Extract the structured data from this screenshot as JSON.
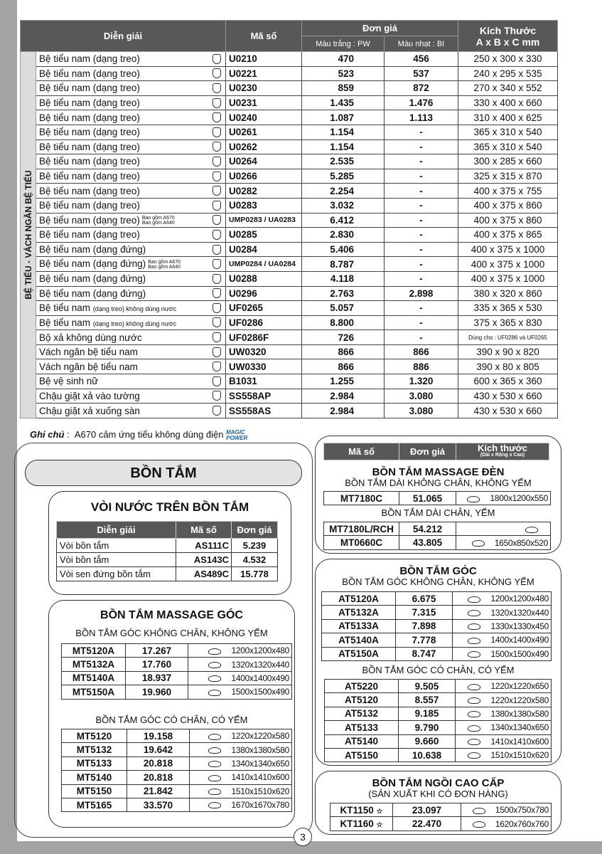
{
  "main_table": {
    "headers": {
      "desc": "Diễn giải",
      "code": "Mã số",
      "price": "Đơn giá",
      "pw": "Màu trắng : PW",
      "bi": "Màu nhạt : BI",
      "size": "Kích Thước",
      "size_unit": "A x B x C mm"
    },
    "side_label": "BỆ TIỂU - VÁCH NGĂN BỆ TIỂU",
    "rows": [
      {
        "desc": "Bệ tiểu nam (dạng treo)",
        "code": "U0210",
        "pw": "470",
        "bi": "456",
        "size": "250 x 300 x 330"
      },
      {
        "desc": "Bệ tiểu nam (dạng treo)",
        "code": "U0221",
        "pw": "523",
        "bi": "537",
        "size": "240 x 295 x 535"
      },
      {
        "desc": "Bệ tiểu nam (dạng treo)",
        "code": "U0230",
        "pw": "859",
        "bi": "872",
        "size": "270 x 340 x 552"
      },
      {
        "desc": "Bệ tiểu nam (dạng treo)",
        "code": "U0231",
        "pw": "1.435",
        "bi": "1.476",
        "size": "330 x 400 x 660"
      },
      {
        "desc": "Bệ tiểu nam (dạng treo)",
        "code": "U0240",
        "pw": "1.087",
        "bi": "1.113",
        "size": "310 x 400 x 625"
      },
      {
        "desc": "Bệ tiểu nam (dạng treo)",
        "code": "U0261",
        "pw": "1.154",
        "bi": "-",
        "size": "365 x 310 x 540"
      },
      {
        "desc": "Bệ tiểu nam (dạng treo)",
        "code": "U0262",
        "pw": "1.154",
        "bi": "-",
        "size": "365 x 310 x 540"
      },
      {
        "desc": "Bệ tiểu nam (dạng treo)",
        "code": "U0264",
        "pw": "2.535",
        "bi": "-",
        "size": "300 x 285 x 660"
      },
      {
        "desc": "Bệ tiểu nam (dạng treo)",
        "code": "U0266",
        "pw": "5.285",
        "bi": "-",
        "size": "325 x 315 x 870"
      },
      {
        "desc": "Bệ tiểu nam (dạng treo)",
        "code": "U0282",
        "pw": "2.254",
        "bi": "-",
        "size": "400 x 375 x 755"
      },
      {
        "desc": "Bệ tiểu nam (dạng treo)",
        "code": "U0283",
        "pw": "3.032",
        "bi": "-",
        "size": "400 x 375 x 860"
      },
      {
        "desc": "Bệ tiểu nam (dạng treo)",
        "note": [
          "Bao gồm A670",
          "Bao gồm A640"
        ],
        "code": "UMP0283 / UA0283",
        "pw": "6.412",
        "bi": "-",
        "size": "400 x 375 x 860"
      },
      {
        "desc": "Bệ tiểu nam (dạng treo)",
        "code": "U0285",
        "pw": "2.830",
        "bi": "-",
        "size": "400 x 375 x 865"
      },
      {
        "desc": "Bệ tiểu nam (dạng đứng)",
        "code": "U0284",
        "pw": "5.406",
        "bi": "-",
        "size": "400 x 375 x 1000"
      },
      {
        "desc": "Bệ tiểu nam (dạng đứng)",
        "note": [
          "Bao gồm A670",
          "Bao gồm A640"
        ],
        "code": "UMP0284 / UA0284",
        "pw": "8.787",
        "bi": "-",
        "size": "400 x 375 x 1000"
      },
      {
        "desc": "Bệ tiểu nam (dạng đứng)",
        "code": "U0288",
        "pw": "4.118",
        "bi": "-",
        "size": "400 x 375 x 1000"
      },
      {
        "desc": "Bệ tiểu nam (dạng đứng)",
        "code": "U0296",
        "pw": "2.763",
        "bi": "2.898",
        "size": "380 x 320 x 860"
      },
      {
        "desc": "Bệ tiểu nam",
        "desc_small": "(dạng treo) không dùng nước",
        "code": "UF0265",
        "pw": "5.057",
        "bi": "-",
        "size": "335 x 365 x 530"
      },
      {
        "desc": "Bệ tiểu nam",
        "desc_small": "(dạng treo) không dùng nước",
        "code": "UF0286",
        "pw": "8.800",
        "bi": "-",
        "size": "375 x 365 x 830"
      },
      {
        "desc": "Bộ xả không dùng nước",
        "code": "UF0286F",
        "pw": "726",
        "bi": "-",
        "size": "Dùng cho : UF0286 và UF0265",
        "size_small": true
      },
      {
        "desc": "Vách ngăn bệ tiểu nam",
        "code": "UW0320",
        "pw": "866",
        "bi": "866",
        "size": "390 x 90 x 820"
      },
      {
        "desc": "Vách ngăn bệ tiểu nam",
        "code": "UW0330",
        "pw": "866",
        "bi": "886",
        "size": "390 x 80 x 805"
      },
      {
        "desc": "Bệ vệ sinh nữ",
        "code": "B1031",
        "pw": "1.255",
        "bi": "1.320",
        "size": "600 x 365 x 360"
      },
      {
        "desc": "Chậu giặt xả vào tường",
        "code": "SS558AP",
        "pw": "2.984",
        "bi": "3.080",
        "size": "430 x 530 x 660"
      },
      {
        "desc": "Chậu giặt xả xuống sàn",
        "code": "SS558AS",
        "pw": "2.984",
        "bi": "3.080",
        "size": "430 x 530 x 660"
      }
    ]
  },
  "note": {
    "label": "Ghi chú",
    "text": "A670 cảm ứng tiểu không dùng điện",
    "logo": "MAGIC POWER"
  },
  "bathtub_title": "BỒN TẮM",
  "faucets": {
    "title": "VÒI NƯỚC TRÊN BỒN TẮM",
    "headers": [
      "Diễn giải",
      "Mã số",
      "Đơn giá"
    ],
    "rows": [
      [
        "Vòi bồn tắm",
        "AS111C",
        "5.239"
      ],
      [
        "Vòi bồn tắm",
        "AS143C",
        "4.532"
      ],
      [
        "Vòi sen đứng bồn tắm",
        "AS489C",
        "15.778"
      ]
    ]
  },
  "massage_corner": {
    "title": "BỒN TẮM MASSAGE GÓC",
    "groups": [
      {
        "subtitle": "BỒN TẮM GÓC KHÔNG CHÂN, KHÔNG YẾM",
        "rows": [
          [
            "MT5120A",
            "17.267",
            "1200x1200x480"
          ],
          [
            "MT5132A",
            "17.760",
            "1320x1320x440"
          ],
          [
            "MT5140A",
            "18.937",
            "1400x1400x490"
          ],
          [
            "MT5150A",
            "19.960",
            "1500x1500x490"
          ]
        ]
      },
      {
        "subtitle": "BỒN TẮM GÓC CÓ CHÂN, CÓ YẾM",
        "rows": [
          [
            "MT5120",
            "19.158",
            "1220x1220x580"
          ],
          [
            "MT5132",
            "19.642",
            "1380x1380x580"
          ],
          [
            "MT5133",
            "20.818",
            "1340x1340x650"
          ],
          [
            "MT5140",
            "20.818",
            "1410x1410x600"
          ],
          [
            "MT5150",
            "21.842",
            "1510x1510x620"
          ],
          [
            "MT5165",
            "33.570",
            "1670x1670x780"
          ]
        ]
      }
    ]
  },
  "right_header": {
    "code": "Mã số",
    "price": "Đơn giá",
    "size": "Kích thước",
    "size_sub": "(Dài x Rộng x Cao)"
  },
  "massage_light": {
    "title": "BỒN TẮM MASSAGE ĐÈN",
    "groups": [
      {
        "subtitle": "BỒN TẮM DÀI KHÔNG CHÂN, KHÔNG YẾM",
        "rows": [
          [
            "MT7180C",
            "51.065",
            "1800x1200x550"
          ]
        ]
      },
      {
        "subtitle": "BỒN TẮM DÀI CHÂN, YẾM",
        "rows": [
          [
            "MT7180L/RCH",
            "54.212",
            ""
          ],
          [
            "MT0660C",
            "43.805",
            "1650x850x520"
          ]
        ]
      }
    ]
  },
  "corner": {
    "title": "BỒN TẮM GÓC",
    "groups": [
      {
        "subtitle": "BỒN TẮM GÓC KHÔNG CHÂN, KHÔNG YẾM",
        "rows": [
          [
            "AT5120A",
            "6.675",
            "1200x1200x480"
          ],
          [
            "AT5132A",
            "7.315",
            "1320x1320x440"
          ],
          [
            "AT5133A",
            "7.898",
            "1330x1330x450"
          ],
          [
            "AT5140A",
            "7.778",
            "1400x1400x490"
          ],
          [
            "AT5150A",
            "8.747",
            "1500x1500x490"
          ]
        ]
      },
      {
        "subtitle": "BỒN TẮM GÓC CÓ CHÂN, CÓ YẾM",
        "rows": [
          [
            "AT5220",
            "9.505",
            "1220x1220x650"
          ],
          [
            "AT5120",
            "8.557",
            "1220x1220x580"
          ],
          [
            "AT5132",
            "9.185",
            "1380x1380x580"
          ],
          [
            "AT5133",
            "9.790",
            "1340x1340x650"
          ],
          [
            "AT5140",
            "9.660",
            "1410x1410x600"
          ],
          [
            "AT5150",
            "10.638",
            "1510x1510x620"
          ]
        ]
      }
    ]
  },
  "sitting": {
    "title": "BỒN TẮM NGỒI CAO CẤP",
    "subtitle": "(SẢN XUẤT KHI CÓ ĐƠN HÀNG)",
    "star": "☆",
    "rows": [
      [
        "KT1150",
        "23.097",
        "1500x750x780"
      ],
      [
        "KT1160",
        "22.470",
        "1620x760x760"
      ]
    ]
  },
  "page_number": "3"
}
